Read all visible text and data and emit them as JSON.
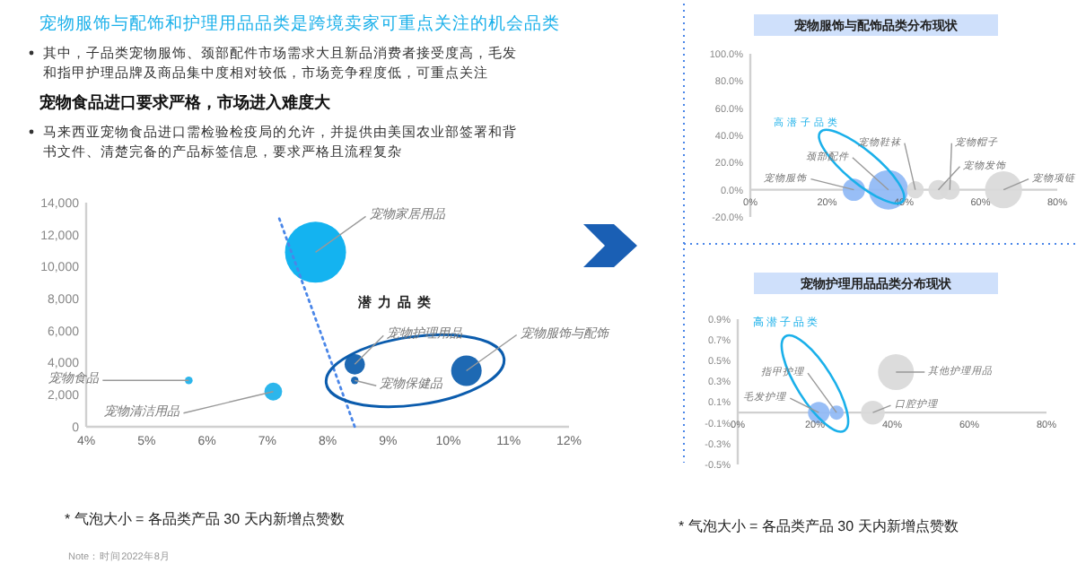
{
  "chart_data": [
    {
      "type": "bubble",
      "title": "宠物服饰与配饰和护理用品品类是跨境卖家可重点关注的机会品类",
      "annotations": [
        "其中，子品类宠物服饰、颈部配件市场需求大且新品消费者接受度高，毛发和指甲护理品牌及商品集中度相对较低，市场竞争程度低，可重点关注",
        "宠物食品进口要求严格，市场进入难度大",
        "马来西亚宠物食品进口需检验检疫局的允许，并提供由美国农业部签署和背书文件、清楚完备的产品标签信息，要求严格且流程复杂",
        "潜力品类",
        "* 气泡大小 = 各品类产品 30 天内新增点赞数",
        "Note：时间2022年8月",
        {
          "text": "宠物食品",
          "x": 5.7,
          "y": 2900
        },
        {
          "text": "宠物清洁用品",
          "x": 7.1,
          "y": 2200
        },
        {
          "text": "宠物家居用品",
          "x": 7.8,
          "y": 10900
        },
        {
          "text": "宠物护理用品",
          "x": 8.45,
          "y": 3900
        },
        {
          "text": "宠物保健品",
          "x": 8.45,
          "y": 2900
        },
        {
          "text": "宠物服饰与配饰",
          "x": 10.3,
          "y": 3500
        }
      ],
      "series": [
        {
          "type": "bubble",
          "x": [
            5.7,
            7.1,
            7.8,
            8.45,
            8.45,
            10.3
          ],
          "values": [
            2900,
            2200,
            10900,
            3900,
            2900,
            3500
          ],
          "sizes": [
            0.016,
            0.085,
            1,
            0.11,
            0.015,
            0.25
          ],
          "colors": [
            "#1ab0ea",
            "#1ab0ea",
            "#00adef",
            "#0b5cad",
            "#0b5cad",
            "#0b5cad"
          ]
        },
        {
          "type": "line",
          "x": [
            7.2,
            8.45
          ],
          "values": [
            13000,
            0
          ],
          "color": "#4a86e8",
          "line_style": "dotted"
        }
      ],
      "xlim": [
        4,
        12
      ],
      "xticks": [
        {
          "value": 4,
          "label": "4%"
        },
        {
          "value": 5,
          "label": "5%"
        },
        {
          "value": 6,
          "label": "6%"
        },
        {
          "value": 7,
          "label": "7%"
        },
        {
          "value": 8,
          "label": "8%"
        },
        {
          "value": 9,
          "label": "9%"
        },
        {
          "value": 10,
          "label": "10%"
        },
        {
          "value": 11,
          "label": "11%"
        },
        {
          "value": 12,
          "label": "12%"
        }
      ],
      "ylim": [
        0,
        14000
      ],
      "yticks": [
        {
          "value": 0,
          "label": "0"
        },
        {
          "value": 2000,
          "label": "2,000"
        },
        {
          "value": 4000,
          "label": "4,000"
        },
        {
          "value": 6000,
          "label": "6,000"
        },
        {
          "value": 8000,
          "label": "8,000"
        },
        {
          "value": 10000,
          "label": "10,000"
        },
        {
          "value": 12000,
          "label": "12,000"
        },
        {
          "value": 14000,
          "label": "14,000"
        }
      ]
    },
    {
      "type": "bubble",
      "title": "宠物服饰与配饰品类分布现状",
      "annotations": [
        "高潜子品类",
        {
          "text": "宠物服饰",
          "x": 27,
          "y": 0
        },
        {
          "text": "颈部配件",
          "x": 36,
          "y": 0
        },
        {
          "text": "宠物鞋袜",
          "x": 43,
          "y": 0
        },
        {
          "text": "宠物发饰",
          "x": 49,
          "y": 0
        },
        {
          "text": "宠物帽子",
          "x": 52,
          "y": 0
        },
        {
          "text": "宠物项链",
          "x": 66,
          "y": 0
        }
      ],
      "series": [
        {
          "type": "bubble",
          "x": [
            27,
            36,
            43,
            49,
            52,
            66
          ],
          "values": [
            0,
            0,
            0,
            0,
            0,
            0
          ],
          "sizes": [
            0.32,
            1,
            0.19,
            0.25,
            0.25,
            0.88
          ],
          "colors": [
            "#8fb8f5",
            "#8fb8f5",
            "#d9d9d9",
            "#d9d9d9",
            "#d9d9d9",
            "#d9d9d9"
          ]
        }
      ],
      "xlim": [
        0,
        80
      ],
      "xticks": [
        {
          "value": 0,
          "label": "0%"
        },
        {
          "value": 20,
          "label": "20%"
        },
        {
          "value": 40,
          "label": "40%"
        },
        {
          "value": 60,
          "label": "60%"
        },
        {
          "value": 80,
          "label": "80%"
        }
      ],
      "ylim": [
        -20,
        100
      ],
      "yticks": [
        {
          "value": -20,
          "label": "-20.0%"
        },
        {
          "value": 0,
          "label": "0.0%"
        },
        {
          "value": 20,
          "label": "20.0%"
        },
        {
          "value": 40,
          "label": "40.0%"
        },
        {
          "value": 60,
          "label": "60.0%"
        },
        {
          "value": 80,
          "label": "80.0%"
        },
        {
          "value": 100,
          "label": "100.0%"
        }
      ]
    },
    {
      "type": "bubble",
      "title": "宠物护理用品品类分布现状",
      "annotations": [
        "高潜子品类",
        "* 气泡大小 = 各品类产品 30 天内新增点赞数",
        {
          "text": "毛发护理",
          "x": 21,
          "y": 0
        },
        {
          "text": "指甲护理",
          "x": 25.6,
          "y": 0
        },
        {
          "text": "口腔护理",
          "x": 35,
          "y": 0
        },
        {
          "text": "其他护理用品",
          "x": 41,
          "y": 0.39
        }
      ],
      "series": [
        {
          "type": "bubble",
          "x": [
            21,
            25.6,
            35,
            41
          ],
          "values": [
            0,
            0,
            0,
            0.39
          ],
          "sizes": [
            0.36,
            0.16,
            0.44,
            1
          ],
          "colors": [
            "#8fb8f5",
            "#8fb8f5",
            "#d9d9d9",
            "#d9d9d9"
          ]
        }
      ],
      "xlim": [
        0,
        80
      ],
      "xticks": [
        {
          "value": 0,
          "label": "0%"
        },
        {
          "value": 20,
          "label": "20%"
        },
        {
          "value": 40,
          "label": "40%"
        },
        {
          "value": 60,
          "label": "60%"
        },
        {
          "value": 80,
          "label": "80%"
        }
      ],
      "ylim": [
        -0.5,
        0.9
      ],
      "yticks": [
        {
          "value": -0.5,
          "label": "-0.5%"
        },
        {
          "value": -0.3,
          "label": "-0.3%"
        },
        {
          "value": -0.1,
          "label": "-0.1%"
        },
        {
          "value": 0.1,
          "label": "0.1%"
        },
        {
          "value": 0.3,
          "label": "0.3%"
        },
        {
          "value": 0.5,
          "label": "0.5%"
        },
        {
          "value": 0.7,
          "label": "0.7%"
        },
        {
          "value": 0.9,
          "label": "0.9%"
        }
      ]
    }
  ]
}
